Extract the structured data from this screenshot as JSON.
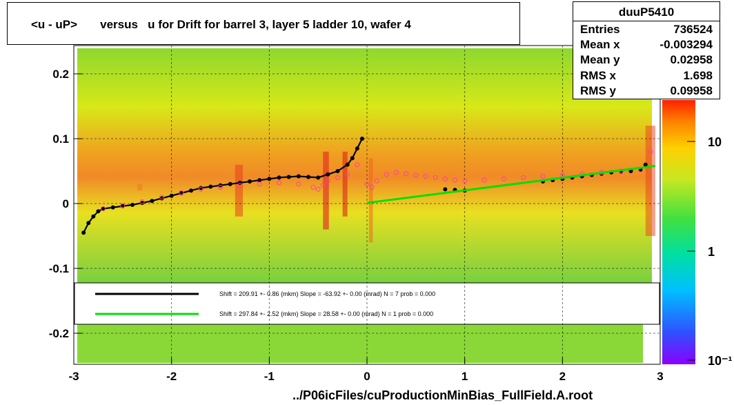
{
  "title": "<u - uP>       versus   u for Drift for barrel 3, layer 5 ladder 10, wafer 4",
  "footer": "../P06icFiles/cuProductionMinBias_FullField.A.root",
  "stats": {
    "name": "duuP5410",
    "rows": [
      {
        "label": "Entries",
        "value": "736524"
      },
      {
        "label": "Mean x",
        "value": "-0.003294"
      },
      {
        "label": "Mean y",
        "value": "0.02958"
      },
      {
        "label": "RMS x",
        "value": "1.698"
      },
      {
        "label": "RMS y",
        "value": "0.09958"
      }
    ]
  },
  "chart_data": {
    "type": "heatmap",
    "xlim": [
      -3,
      3
    ],
    "ylim": [
      -0.25,
      0.25
    ],
    "x_ticks": [
      "-3",
      "-2",
      "-1",
      "0",
      "1",
      "2",
      "3"
    ],
    "x_tick_values": [
      -3,
      -2,
      -1,
      0,
      1,
      2,
      3
    ],
    "y_ticks": [
      "-0.2",
      "-0.1",
      "0",
      "0.1",
      "0.2"
    ],
    "y_tick_values": [
      -0.2,
      -0.1,
      0,
      0.1,
      0.2
    ],
    "grid": true,
    "colorbar": {
      "scale": "log",
      "labels": [
        "10",
        "1",
        "10⁻¹"
      ],
      "label_values": [
        10,
        1,
        0.1
      ]
    },
    "legend": [
      {
        "color": "#000000",
        "text": "Shift =   209.91 +- 0.86 (mkm) Slope =   -63.92 +- 0.00 (mrad)  N = 7 prob = 0.000"
      },
      {
        "color": "#00e000",
        "text": "Shift =   297.84 +- 2.52 (mkm) Slope =    28.58 +- 0.00 (mrad)  N = 1 prob = 0.000"
      }
    ],
    "series": [
      {
        "style": "black-points-with-fit",
        "x": [
          -2.9,
          -2.85,
          -2.8,
          -2.75,
          -2.7,
          -2.6,
          -2.5,
          -2.4,
          -2.3,
          -2.2,
          -2.1,
          -2.0,
          -1.9,
          -1.8,
          -1.7,
          -1.6,
          -1.5,
          -1.4,
          -1.3,
          -1.2,
          -1.1,
          -1.0,
          -0.9,
          -0.8,
          -0.7,
          -0.6,
          -0.5,
          -0.4,
          -0.3,
          -0.2,
          -0.15,
          -0.1,
          -0.05
        ],
        "y": [
          -0.045,
          -0.03,
          -0.02,
          -0.012,
          -0.008,
          -0.006,
          -0.004,
          -0.002,
          0.001,
          0.004,
          0.008,
          0.012,
          0.016,
          0.02,
          0.024,
          0.026,
          0.028,
          0.03,
          0.032,
          0.034,
          0.036,
          0.038,
          0.04,
          0.041,
          0.042,
          0.041,
          0.04,
          0.045,
          0.05,
          0.06,
          0.07,
          0.085,
          0.1
        ]
      },
      {
        "style": "black-points",
        "x": [
          0.8,
          0.9,
          1.0,
          1.8,
          1.9,
          2.0,
          2.1,
          2.2,
          2.3,
          2.4,
          2.5,
          2.6,
          2.7,
          2.8,
          2.85
        ],
        "y": [
          0.022,
          0.021,
          0.02,
          0.034,
          0.036,
          0.038,
          0.04,
          0.042,
          0.044,
          0.046,
          0.048,
          0.049,
          0.05,
          0.052,
          0.06
        ]
      },
      {
        "style": "pink-open-points",
        "x": [
          -2.7,
          -2.5,
          -2.3,
          -2.1,
          -1.9,
          -1.7,
          -1.5,
          -1.3,
          -1.1,
          -0.9,
          -0.7,
          -0.55,
          -0.5,
          -0.45,
          -0.4,
          -0.3,
          -0.2,
          -0.1,
          0.0,
          0.05,
          0.1,
          0.2,
          0.3,
          0.4,
          0.5,
          0.6,
          0.7,
          0.8,
          0.9,
          1.0,
          1.2,
          1.4,
          1.6,
          1.8,
          2.0,
          2.2,
          2.4,
          2.6,
          2.8,
          2.9
        ],
        "y": [
          -0.008,
          -0.003,
          0.003,
          0.01,
          0.017,
          0.022,
          0.025,
          0.028,
          0.03,
          0.032,
          0.03,
          0.025,
          0.022,
          0.028,
          0.035,
          0.04,
          0.045,
          0.06,
          0.03,
          0.025,
          0.035,
          0.045,
          0.048,
          0.046,
          0.044,
          0.042,
          0.04,
          0.038,
          0.036,
          0.035,
          0.036,
          0.038,
          0.04,
          0.042,
          0.044,
          0.046,
          0.048,
          0.05,
          0.052,
          0.08
        ]
      },
      {
        "style": "green-fit-line",
        "x": [
          0,
          2.95
        ],
        "y": [
          0.001,
          0.058
        ]
      }
    ]
  }
}
